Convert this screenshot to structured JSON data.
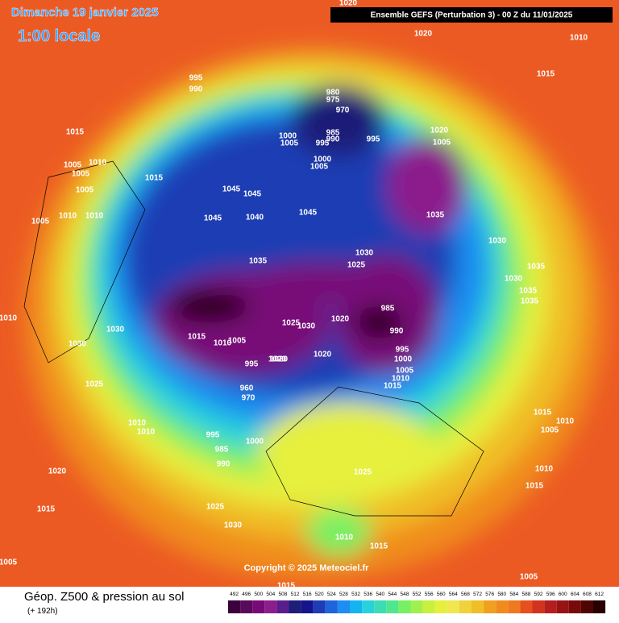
{
  "header": {
    "date": "Dimanche 19 janvier 2025",
    "time": "1:00 locale",
    "model": "Ensemble GEFS  (Perturbation 3)  -  00 Z du 11/01/2025"
  },
  "map": {
    "copyright": "Copyright © 2025 Meteociel.fr",
    "isobar_labels": [
      1020,
      1020,
      1010,
      1015,
      995,
      990,
      980,
      975,
      970,
      985,
      990,
      995,
      995,
      1000,
      1005,
      1000,
      1005,
      1015,
      1010,
      1015,
      1005,
      1005,
      1010,
      1020,
      1045,
      1045,
      1045,
      1040,
      1045,
      1035,
      1005,
      1005,
      1010,
      1005,
      1035,
      1030,
      1025,
      1030,
      1035,
      1035,
      1035,
      1030,
      1020,
      985,
      990,
      995,
      1000,
      1005,
      1010,
      1015,
      1020,
      1025,
      1030,
      1030,
      1030,
      1015,
      1010,
      1005,
      995,
      960,
      970,
      1020,
      1020,
      1025,
      1010,
      1010,
      995,
      985,
      990,
      1000,
      1020,
      1015,
      1025,
      1030,
      1010,
      1015,
      1005,
      1015,
      1015,
      1010,
      1005,
      1010,
      1015,
      1025,
      1010,
      1005
    ]
  },
  "legend": {
    "title": "Géop. Z500 & pression au sol",
    "lead": "(+ 192h)",
    "scale": [
      492,
      496,
      500,
      504,
      508,
      512,
      516,
      520,
      524,
      528,
      532,
      536,
      540,
      544,
      548,
      552,
      556,
      560,
      564,
      568,
      572,
      576,
      580,
      584,
      588,
      592,
      596,
      600,
      604,
      608,
      612
    ],
    "colors": [
      "#3c003c",
      "#5a0a5a",
      "#780a78",
      "#8c1e8c",
      "#5a1e8c",
      "#1e1e78",
      "#14148c",
      "#1e3cb4",
      "#1e64dc",
      "#1e8cf0",
      "#14b4f0",
      "#28d2dc",
      "#3cdcb4",
      "#50e68c",
      "#78f064",
      "#a0f050",
      "#c8f03c",
      "#e6f03c",
      "#f0e650",
      "#f0d23c",
      "#f0be28",
      "#f0a01e",
      "#f08c1e",
      "#f0781e",
      "#e6501e",
      "#d2321e",
      "#b41e1e",
      "#961414",
      "#780a0a",
      "#500505",
      "#280000"
    ]
  }
}
